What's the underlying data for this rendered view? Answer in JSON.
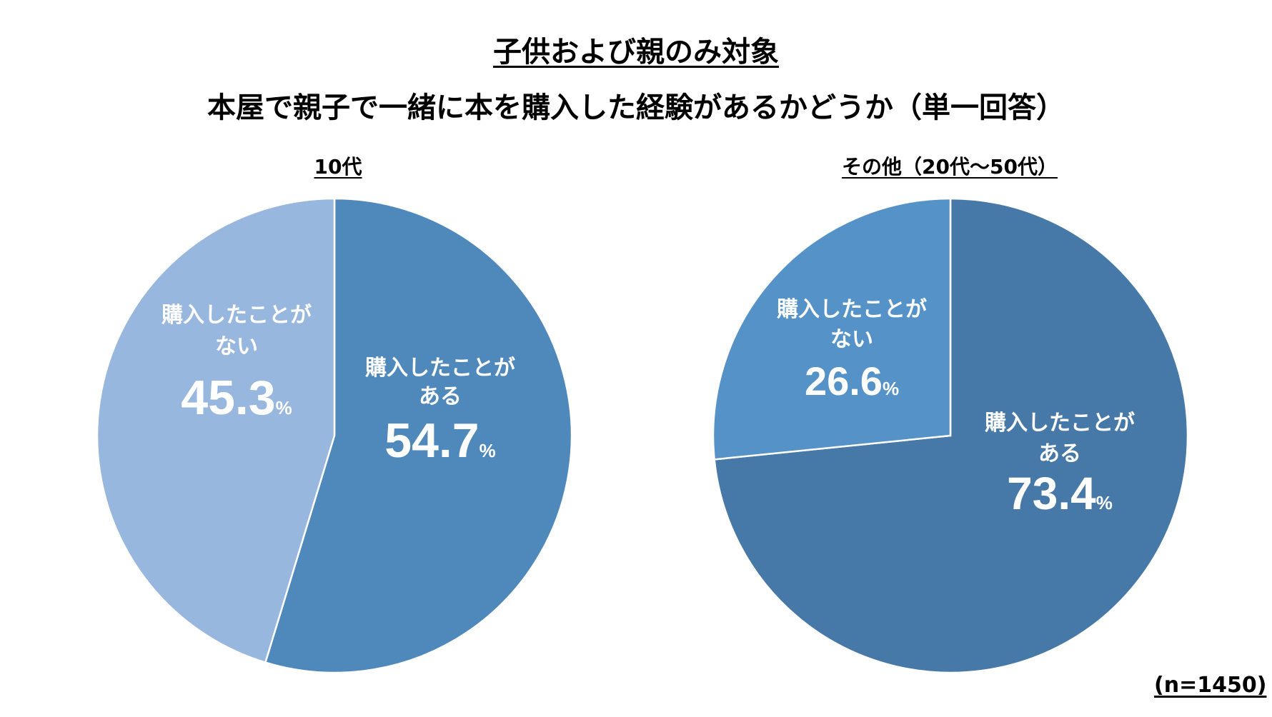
{
  "title": "子供および親のみ対象",
  "subtitle": "本屋で親子で一緒に本を購入した経験があるかどうか（単一回答）",
  "sample_note": "(n=1450)",
  "chart_data": [
    {
      "type": "pie",
      "title": "10代",
      "start": "top",
      "direction": "clockwise",
      "slices": [
        {
          "label_line1": "購入したことが",
          "label_line2": "ある",
          "value": 54.7,
          "value_text": "54.7",
          "unit": "%",
          "color": "#4f88bb"
        },
        {
          "label_line1": "購入したことが",
          "label_line2": "ない",
          "value": 45.3,
          "value_text": "45.3",
          "unit": "%",
          "color": "#98b7df"
        }
      ]
    },
    {
      "type": "pie",
      "title": "その他（20代〜50代）",
      "start": "top",
      "direction": "clockwise",
      "slices": [
        {
          "label_line1": "購入したことが",
          "label_line2": "ある",
          "value": 73.4,
          "value_text": "73.4",
          "unit": "%",
          "color": "#4779a8"
        },
        {
          "label_line1": "購入したことが",
          "label_line2": "ない",
          "value": 26.6,
          "value_text": "26.6",
          "unit": "%",
          "color": "#5592c8"
        }
      ]
    }
  ]
}
